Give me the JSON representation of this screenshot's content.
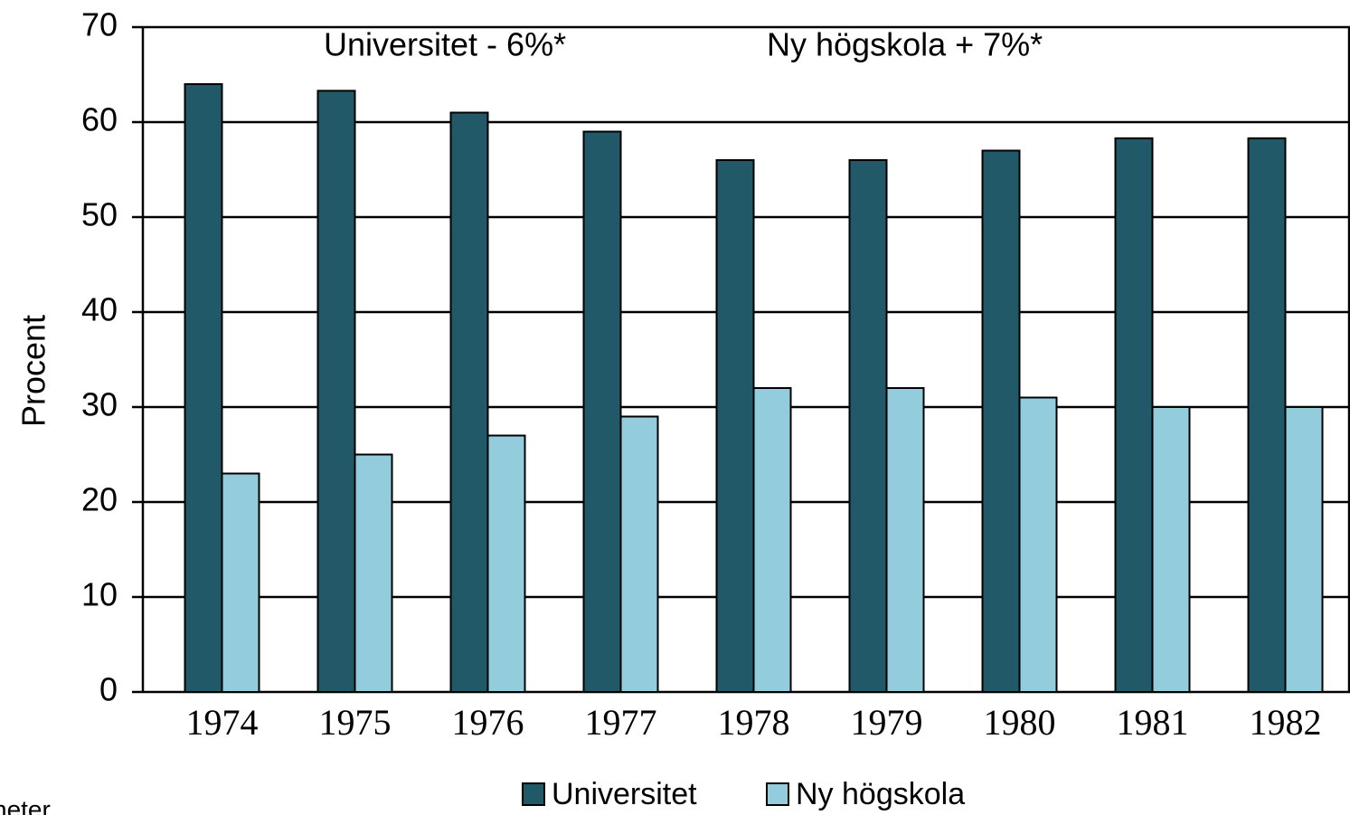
{
  "chart_data": {
    "type": "bar",
    "y_label": "Procent",
    "annotations": [
      "Universitet  - 6%*",
      "Ny högskola  + 7%*"
    ],
    "footnote": "heter",
    "categories": [
      "1974",
      "1975",
      "1976",
      "1977",
      "1978",
      "1979",
      "1980",
      "1981",
      "1982"
    ],
    "series": [
      {
        "name": "Universitet",
        "color": "#215968",
        "values": [
          64,
          63.3,
          61,
          59,
          56,
          56,
          57,
          58.3,
          58.3
        ]
      },
      {
        "name": "Ny högskola",
        "color": "#93cddd",
        "values": [
          23,
          25,
          27,
          29,
          32,
          32,
          31,
          30,
          30
        ]
      }
    ],
    "ylim": [
      0,
      70
    ],
    "yticks": [
      0,
      10,
      20,
      30,
      40,
      50,
      60,
      70
    ],
    "grid": true
  }
}
